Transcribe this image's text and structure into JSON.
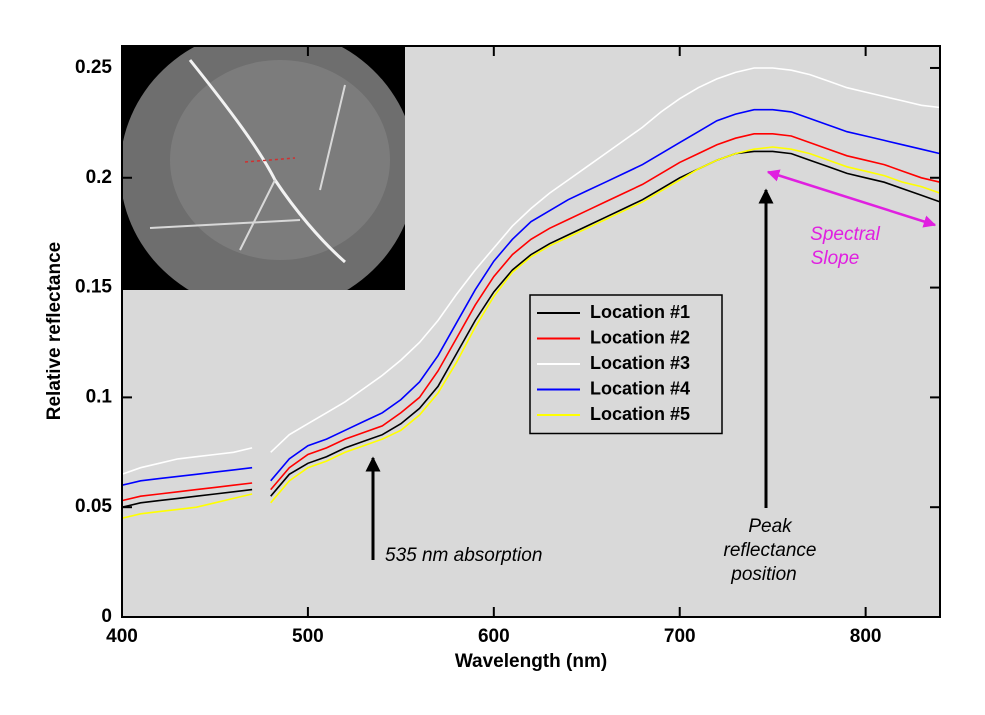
{
  "chart_data": {
    "type": "line",
    "x": [
      400,
      410,
      420,
      430,
      440,
      450,
      460,
      470,
      475,
      480,
      490,
      500,
      510,
      520,
      530,
      540,
      550,
      560,
      570,
      580,
      590,
      600,
      610,
      620,
      630,
      640,
      650,
      660,
      670,
      680,
      690,
      700,
      710,
      720,
      730,
      740,
      750,
      760,
      770,
      780,
      790,
      800,
      810,
      820,
      830,
      840
    ],
    "series": [
      {
        "name": "Location #1",
        "color": "#000000",
        "values": [
          0.05,
          0.052,
          0.053,
          0.054,
          0.055,
          0.056,
          0.057,
          0.058,
          null,
          0.055,
          0.065,
          0.07,
          0.073,
          0.077,
          0.08,
          0.083,
          0.088,
          0.095,
          0.105,
          0.12,
          0.135,
          0.148,
          0.158,
          0.165,
          0.17,
          0.174,
          0.178,
          0.182,
          0.186,
          0.19,
          0.195,
          0.2,
          0.204,
          0.208,
          0.211,
          0.212,
          0.212,
          0.211,
          0.208,
          0.205,
          0.202,
          0.2,
          0.198,
          0.195,
          0.192,
          0.189
        ]
      },
      {
        "name": "Location #2",
        "color": "#ff0000",
        "values": [
          0.053,
          0.055,
          0.056,
          0.057,
          0.058,
          0.059,
          0.06,
          0.061,
          null,
          0.058,
          0.068,
          0.074,
          0.077,
          0.081,
          0.084,
          0.087,
          0.093,
          0.1,
          0.112,
          0.127,
          0.142,
          0.155,
          0.165,
          0.172,
          0.177,
          0.181,
          0.185,
          0.189,
          0.193,
          0.197,
          0.202,
          0.207,
          0.211,
          0.215,
          0.218,
          0.22,
          0.22,
          0.219,
          0.216,
          0.213,
          0.21,
          0.208,
          0.206,
          0.203,
          0.2,
          0.198
        ]
      },
      {
        "name": "Location #3",
        "color": "#ffffff",
        "values": [
          0.065,
          0.068,
          0.07,
          0.072,
          0.073,
          0.074,
          0.075,
          0.077,
          null,
          0.075,
          0.083,
          0.088,
          0.093,
          0.098,
          0.104,
          0.11,
          0.117,
          0.125,
          0.135,
          0.147,
          0.158,
          0.168,
          0.178,
          0.186,
          0.193,
          0.199,
          0.205,
          0.211,
          0.217,
          0.223,
          0.23,
          0.236,
          0.241,
          0.245,
          0.248,
          0.25,
          0.25,
          0.249,
          0.247,
          0.244,
          0.241,
          0.239,
          0.237,
          0.235,
          0.233,
          0.232
        ]
      },
      {
        "name": "Location #4",
        "color": "#0000ff",
        "values": [
          0.06,
          0.062,
          0.063,
          0.064,
          0.065,
          0.066,
          0.067,
          0.068,
          null,
          0.062,
          0.072,
          0.078,
          0.081,
          0.085,
          0.089,
          0.093,
          0.099,
          0.107,
          0.119,
          0.134,
          0.149,
          0.162,
          0.172,
          0.18,
          0.185,
          0.19,
          0.194,
          0.198,
          0.202,
          0.206,
          0.211,
          0.216,
          0.221,
          0.226,
          0.229,
          0.231,
          0.231,
          0.23,
          0.227,
          0.224,
          0.221,
          0.219,
          0.217,
          0.215,
          0.213,
          0.211
        ]
      },
      {
        "name": "Location #5",
        "color": "#ffff00",
        "values": [
          0.045,
          0.047,
          0.048,
          0.049,
          0.05,
          0.052,
          0.054,
          0.056,
          null,
          0.052,
          0.062,
          0.068,
          0.071,
          0.075,
          0.078,
          0.081,
          0.085,
          0.092,
          0.102,
          0.116,
          0.132,
          0.146,
          0.157,
          0.164,
          0.169,
          0.173,
          0.177,
          0.181,
          0.185,
          0.189,
          0.194,
          0.199,
          0.204,
          0.208,
          0.211,
          0.213,
          0.214,
          0.213,
          0.211,
          0.208,
          0.205,
          0.203,
          0.201,
          0.198,
          0.196,
          0.193
        ]
      }
    ],
    "x_label": "Wavelength (nm)",
    "y_label": "Relative reflectance",
    "xlim": [
      400,
      840
    ],
    "xticks": [
      400,
      500,
      600,
      700,
      800
    ],
    "ylim": [
      0,
      0.26
    ],
    "yticks": [
      0,
      0.05,
      0.1,
      0.15,
      0.2,
      0.25
    ],
    "legend_position": "center",
    "annotations": [
      {
        "lines": [
          "535 nm absorption"
        ]
      },
      {
        "lines": [
          "Peak",
          "reflectance",
          "position"
        ]
      },
      {
        "lines": [
          "Spectral",
          "Slope"
        ],
        "color": "#e020e0"
      }
    ]
  }
}
